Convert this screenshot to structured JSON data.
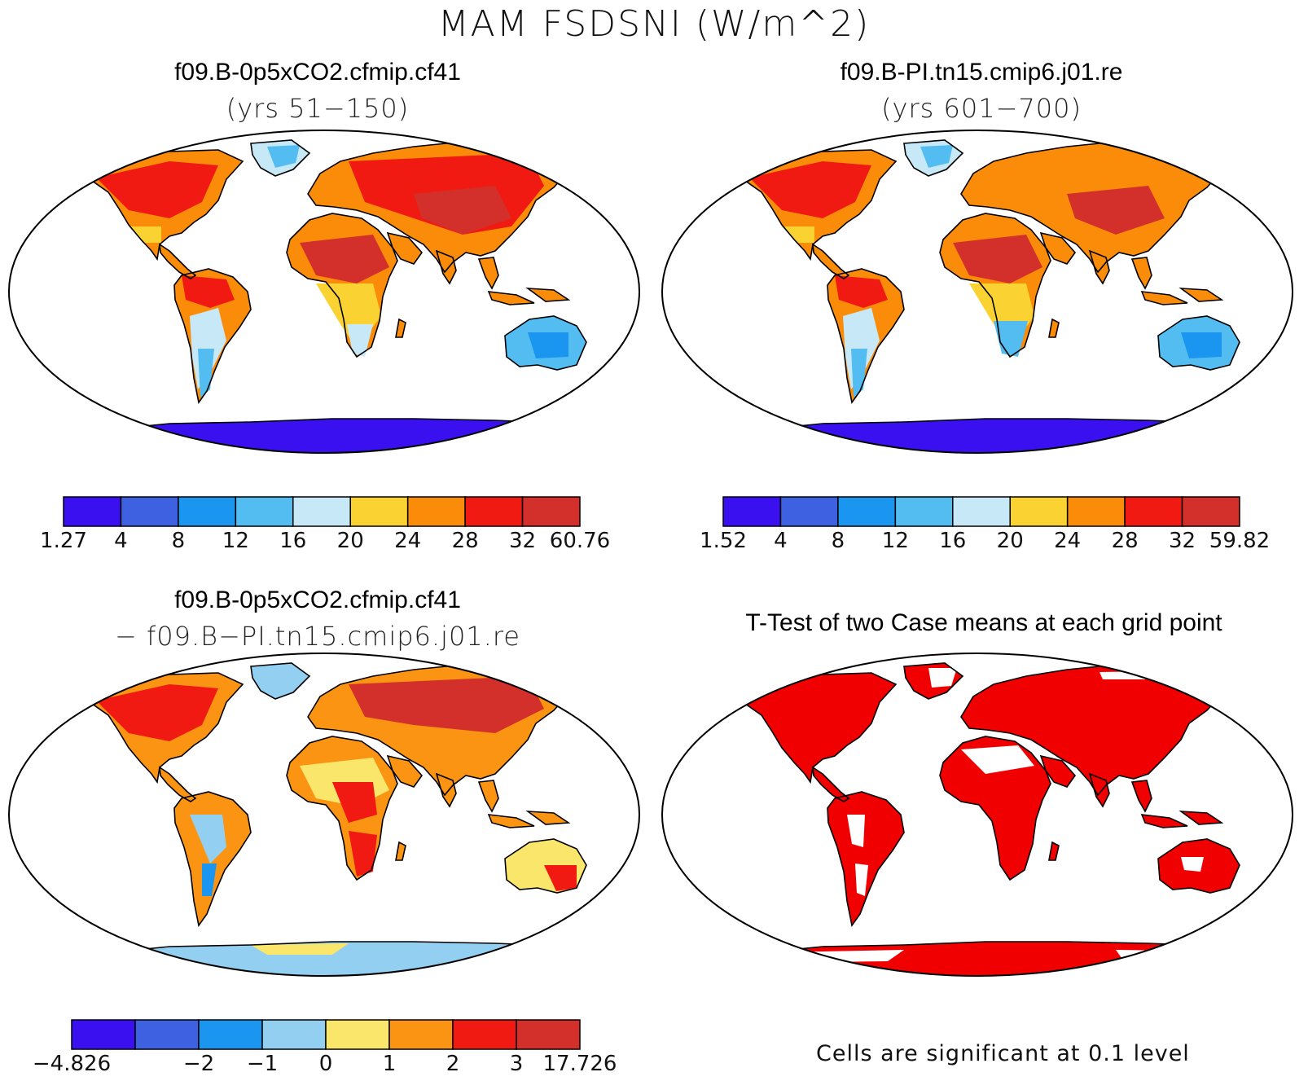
{
  "title": "MAM FSDSNI (W/m^2)",
  "panels": [
    {
      "id": "case1",
      "title_line1": "f09.B-0p5xCO2.cfmip.cf41",
      "title_line2": "(yrs 51−150)",
      "colorbar": {
        "colors": [
          "#3b10f0",
          "#3d61e0",
          "#1a96f0",
          "#53bcf0",
          "#c7e8f7",
          "#fad232",
          "#fb8c0a",
          "#f01a12",
          "#d3302b"
        ],
        "tick_labels": [
          "1.27",
          "4",
          "8",
          "12",
          "16",
          "20",
          "24",
          "28",
          "32",
          "60.76"
        ]
      }
    },
    {
      "id": "case2",
      "title_line1": "f09.B-PI.tn15.cmip6.j01.re",
      "title_line2": "(yrs 601−700)",
      "colorbar": {
        "colors": [
          "#3b10f0",
          "#3d61e0",
          "#1a96f0",
          "#53bcf0",
          "#c7e8f7",
          "#fad232",
          "#fb8c0a",
          "#f01a12",
          "#d3302b"
        ],
        "tick_labels": [
          "1.52",
          "4",
          "8",
          "12",
          "16",
          "20",
          "24",
          "28",
          "32",
          "59.82"
        ]
      }
    },
    {
      "id": "diff",
      "title_line1": "f09.B-0p5xCO2.cfmip.cf41",
      "title_line2": "− f09.B−PI.tn15.cmip6.j01.re",
      "colorbar": {
        "colors": [
          "#3b10f0",
          "#3d61e0",
          "#1a96f0",
          "#93cff0",
          "#fae66a",
          "#fb9412",
          "#f01a12",
          "#d3302b"
        ],
        "tick_labels": [
          "−4.826",
          "",
          "−2",
          "−1",
          "0",
          "1",
          "2",
          "3",
          "17.726"
        ]
      }
    },
    {
      "id": "ttest",
      "title_line1": "T-Test of two Case means at each grid point",
      "note": "Cells are significant at 0.1 level"
    }
  ]
}
